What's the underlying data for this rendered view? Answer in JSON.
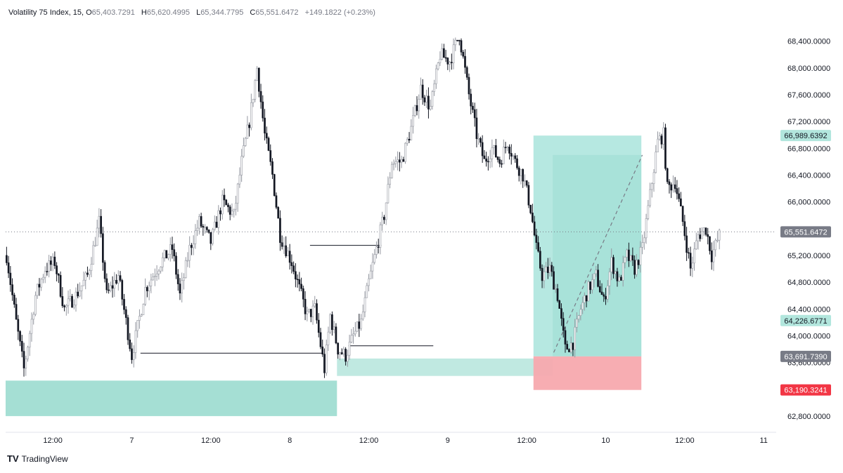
{
  "header": {
    "symbol": "Volatility 75 Index, 15,",
    "o_label": "O",
    "o_value": "65,403.7291",
    "h_label": "H",
    "h_value": "65,620.4995",
    "l_label": "L",
    "l_value": "65,344.7795",
    "c_label": "C",
    "c_value": "65,551.6472",
    "change": "+149.1822 (+0.23%)"
  },
  "branding": {
    "text": "TradingView",
    "logo": "TV"
  },
  "colors": {
    "candle": "#131722",
    "wick_gray": "#9598a1",
    "teal_zone": "#a5dfd4",
    "profit_zone": "#a9e4dc",
    "loss_zone": "#f7a9ae",
    "last_price_badge": "#787b86",
    "target_badge": "#b2e6dd",
    "stop_badge": "#f23645"
  },
  "chart_data": {
    "type": "candlestick",
    "y_axis": {
      "min": 62600,
      "max": 68700,
      "ticks": [
        "62,800.0000",
        "63,200.0000",
        "63,600.0000",
        "64,000.0000",
        "64,400.0000",
        "64,800.0000",
        "65,200.0000",
        "65,600.0000",
        "66,000.0000",
        "66,400.0000",
        "66,800.0000",
        "67,200.0000",
        "67,600.0000",
        "68,000.0000",
        "68,400.0000"
      ],
      "tick_values": [
        62800,
        63200,
        63600,
        64000,
        64400,
        64800,
        65200,
        65600,
        66000,
        66400,
        66800,
        67200,
        67600,
        68000,
        68400
      ]
    },
    "x_axis": {
      "labels": [
        "12:00",
        "7",
        "12:00",
        "8",
        "12:00",
        "9",
        "12:00",
        "10",
        "12:00",
        "11"
      ],
      "positions_bars": [
        24,
        65,
        106,
        147,
        188,
        229,
        270,
        311,
        352,
        393
      ]
    },
    "bar_count": 400,
    "price_path": [
      [
        0,
        65200
      ],
      [
        5,
        64200
      ],
      [
        9,
        63500
      ],
      [
        15,
        64600
      ],
      [
        20,
        65000
      ],
      [
        25,
        65100
      ],
      [
        30,
        64400
      ],
      [
        36,
        64600
      ],
      [
        42,
        64900
      ],
      [
        48,
        65700
      ],
      [
        52,
        64600
      ],
      [
        58,
        64900
      ],
      [
        65,
        63700
      ],
      [
        72,
        64700
      ],
      [
        80,
        65100
      ],
      [
        86,
        65300
      ],
      [
        90,
        64600
      ],
      [
        95,
        65300
      ],
      [
        100,
        65700
      ],
      [
        106,
        65400
      ],
      [
        112,
        66000
      ],
      [
        118,
        65800
      ],
      [
        122,
        66600
      ],
      [
        126,
        67200
      ],
      [
        130,
        68000
      ],
      [
        134,
        67000
      ],
      [
        138,
        66400
      ],
      [
        142,
        65500
      ],
      [
        148,
        65100
      ],
      [
        152,
        64700
      ],
      [
        156,
        64300
      ],
      [
        160,
        64400
      ],
      [
        165,
        63500
      ],
      [
        168,
        64300
      ],
      [
        172,
        63800
      ],
      [
        176,
        63700
      ],
      [
        180,
        64000
      ],
      [
        184,
        64200
      ],
      [
        188,
        64800
      ],
      [
        192,
        65300
      ],
      [
        196,
        65800
      ],
      [
        200,
        66600
      ],
      [
        205,
        66600
      ],
      [
        210,
        67100
      ],
      [
        215,
        67700
      ],
      [
        220,
        67400
      ],
      [
        225,
        68200
      ],
      [
        230,
        68100
      ],
      [
        235,
        68500
      ],
      [
        240,
        67600
      ],
      [
        244,
        67000
      ],
      [
        248,
        66600
      ],
      [
        252,
        66800
      ],
      [
        256,
        66600
      ],
      [
        260,
        66900
      ],
      [
        264,
        66600
      ],
      [
        268,
        66400
      ],
      [
        272,
        65900
      ],
      [
        275,
        65300
      ],
      [
        278,
        64900
      ],
      [
        282,
        65000
      ],
      [
        286,
        64600
      ],
      [
        290,
        63800
      ],
      [
        294,
        63900
      ],
      [
        298,
        64400
      ],
      [
        302,
        64700
      ],
      [
        306,
        64900
      ],
      [
        310,
        64500
      ],
      [
        314,
        65100
      ],
      [
        318,
        64800
      ],
      [
        322,
        65200
      ],
      [
        326,
        65000
      ],
      [
        330,
        65300
      ],
      [
        336,
        66500
      ],
      [
        338,
        66900
      ],
      [
        341,
        67000
      ],
      [
        343,
        66200
      ],
      [
        347,
        66300
      ],
      [
        351,
        65700
      ],
      [
        355,
        65000
      ],
      [
        359,
        65500
      ],
      [
        363,
        65600
      ],
      [
        366,
        65200
      ],
      [
        370,
        65500
      ]
    ],
    "annotations": {
      "last_price": {
        "value": 65551.6472,
        "label": "65,551.6472"
      },
      "target_price": {
        "value": 66989.6392,
        "label": "66,989.6392"
      },
      "mid_price": {
        "value": 64226.6771,
        "label": "64,226.6771"
      },
      "entry_price": {
        "value": 63691.739,
        "label": "63,691.7390"
      },
      "stop_price": {
        "value": 63190.3241,
        "label": "63,190.3241"
      },
      "demand_zone_1": {
        "bar_start": 0,
        "bar_end": 172,
        "top": 63330,
        "bottom": 62800
      },
      "demand_zone_2": {
        "bar_start": 172,
        "bar_end": 284,
        "top": 63660,
        "bottom": 63400
      },
      "profit_zone": {
        "bar_start": 274,
        "bar_end": 330,
        "top": 66989.6392,
        "bottom": 63691.739
      },
      "profit_zone_inner": {
        "bar_start": 284,
        "bar_end": 330,
        "top": 66700,
        "bottom": 63691.739
      },
      "loss_zone": {
        "bar_start": 274,
        "bar_end": 330,
        "top": 63691.739,
        "bottom": 63190.3241
      },
      "line_low_1": {
        "bar_start": 70,
        "bar_end": 165,
        "value": 63740
      },
      "line_low_2": {
        "bar_start": 178,
        "bar_end": 222,
        "value": 63850
      },
      "line_high": {
        "bar_start": 158,
        "bar_end": 195,
        "value": 65350
      },
      "trend_line": {
        "bar_start": 284,
        "value_start": 63750,
        "bar_end": 330,
        "value_end": 66700
      }
    }
  }
}
